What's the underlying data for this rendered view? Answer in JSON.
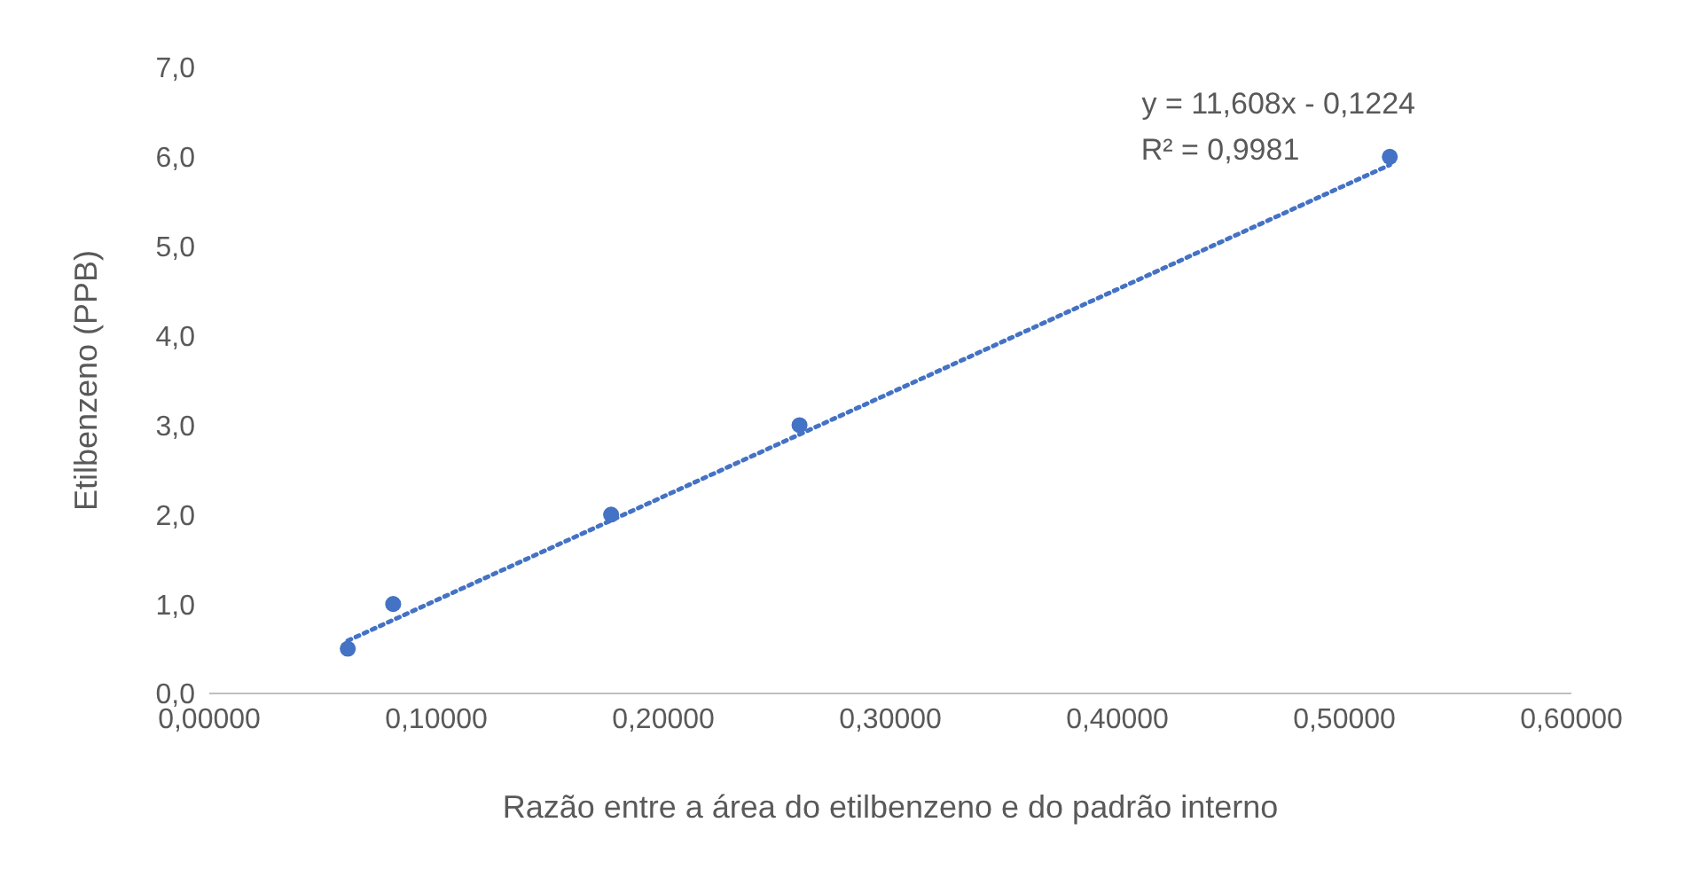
{
  "chart_data": {
    "type": "scatter",
    "xlabel": "Razão entre a área do etilbenzeno e do padrão interno",
    "ylabel": "Etilbenzeno (PPB)",
    "x": [
      0.061,
      0.081,
      0.177,
      0.26,
      0.52
    ],
    "series": [
      {
        "color": "#4472c4",
        "values": [
          0.5,
          1.0,
          2.0,
          3.0,
          6.0
        ],
        "marker": "circle"
      },
      {
        "type": "line",
        "color": "#4472c4",
        "x": [
          0.061,
          0.52
        ],
        "values": [
          0.59,
          5.91
        ],
        "line_style": "dotted",
        "marker": "none"
      }
    ],
    "xlim": [
      0,
      0.6
    ],
    "xticks": [
      {
        "value": 0,
        "label": "0,00000"
      },
      {
        "value": 0.1,
        "label": "0,10000"
      },
      {
        "value": 0.2,
        "label": "0,20000"
      },
      {
        "value": 0.3,
        "label": "0,30000"
      },
      {
        "value": 0.4,
        "label": "0,40000"
      },
      {
        "value": 0.5,
        "label": "0,50000"
      },
      {
        "value": 0.6,
        "label": "0,60000"
      }
    ],
    "ylim": [
      0,
      7
    ],
    "yticks": [
      {
        "value": 0,
        "label": "0,0"
      },
      {
        "value": 1,
        "label": "1,0"
      },
      {
        "value": 2,
        "label": "2,0"
      },
      {
        "value": 3,
        "label": "3,0"
      },
      {
        "value": 4,
        "label": "4,0"
      },
      {
        "value": 5,
        "label": "5,0"
      },
      {
        "value": 6,
        "label": "6,0"
      },
      {
        "value": 7,
        "label": "7,0"
      }
    ],
    "annotations": [
      "y = 11,608x - 0,1224",
      "R² = 0,9981"
    ]
  }
}
